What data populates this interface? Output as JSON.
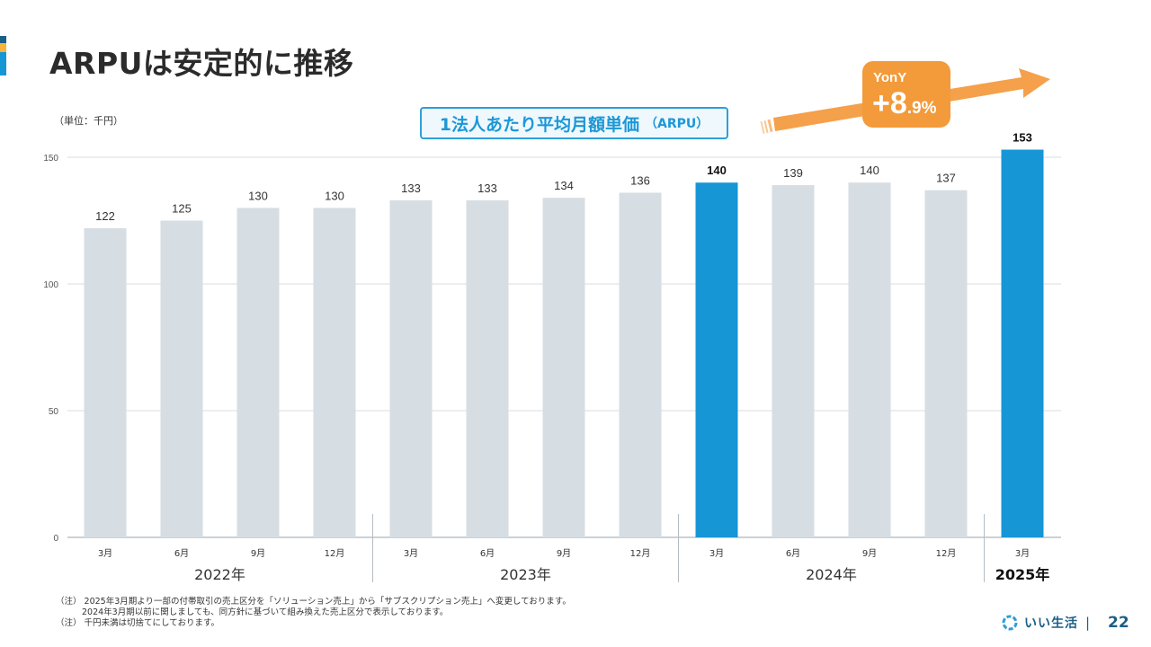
{
  "slide": {
    "title": "ARPUは安定的に推移",
    "unit": "（単位：千円）",
    "badge_main": "1法人あたり平均月額単価",
    "badge_sub": "（ARPU）",
    "yony_label": "YonY",
    "yony_plus": "+8",
    "yony_rest": ".9%",
    "notes": [
      "（注） 2025年3月期より一部の付帯取引の売上区分を「ソリューション売上」から「サブスクリプション売上」へ変更しております。",
      "2024年3月期以前に関しましても、同方針に基づいて組み換えた売上区分で表示しております。",
      "（注） 千円未満は切捨てにしております。"
    ],
    "brand": "いい生活",
    "separator": "|",
    "page_number": "22"
  },
  "colors": {
    "bar_default": "#d6dde3",
    "bar_highlight": "#1796d6",
    "badge_border": "#2e9fd8",
    "yony_bg": "#f39a3a",
    "arrow": "#f5a04a",
    "brand_text": "#1b5f86"
  },
  "chart_data": {
    "type": "bar",
    "title": "1法人あたり平均月額単価（ARPU）",
    "ylabel": "（単位：千円）",
    "ylim": [
      0,
      150
    ],
    "yticks": [
      0,
      50,
      100,
      150
    ],
    "grid": true,
    "categories": [
      "3月",
      "6月",
      "9月",
      "12月",
      "3月",
      "6月",
      "9月",
      "12月",
      "3月",
      "6月",
      "9月",
      "12月",
      "3月"
    ],
    "values": [
      122,
      125,
      130,
      130,
      133,
      133,
      134,
      136,
      140,
      139,
      140,
      137,
      153
    ],
    "highlight": [
      false,
      false,
      false,
      false,
      false,
      false,
      false,
      false,
      true,
      false,
      false,
      false,
      true
    ],
    "year_groups": [
      {
        "label": "2022年",
        "start": 0,
        "end": 3,
        "bold": false
      },
      {
        "label": "2023年",
        "start": 4,
        "end": 7,
        "bold": false
      },
      {
        "label": "2024年",
        "start": 8,
        "end": 11,
        "bold": false
      },
      {
        "label": "2025年",
        "start": 12,
        "end": 12,
        "bold": true
      }
    ],
    "annotation": {
      "label": "YonY",
      "value": "+8.9%"
    }
  }
}
